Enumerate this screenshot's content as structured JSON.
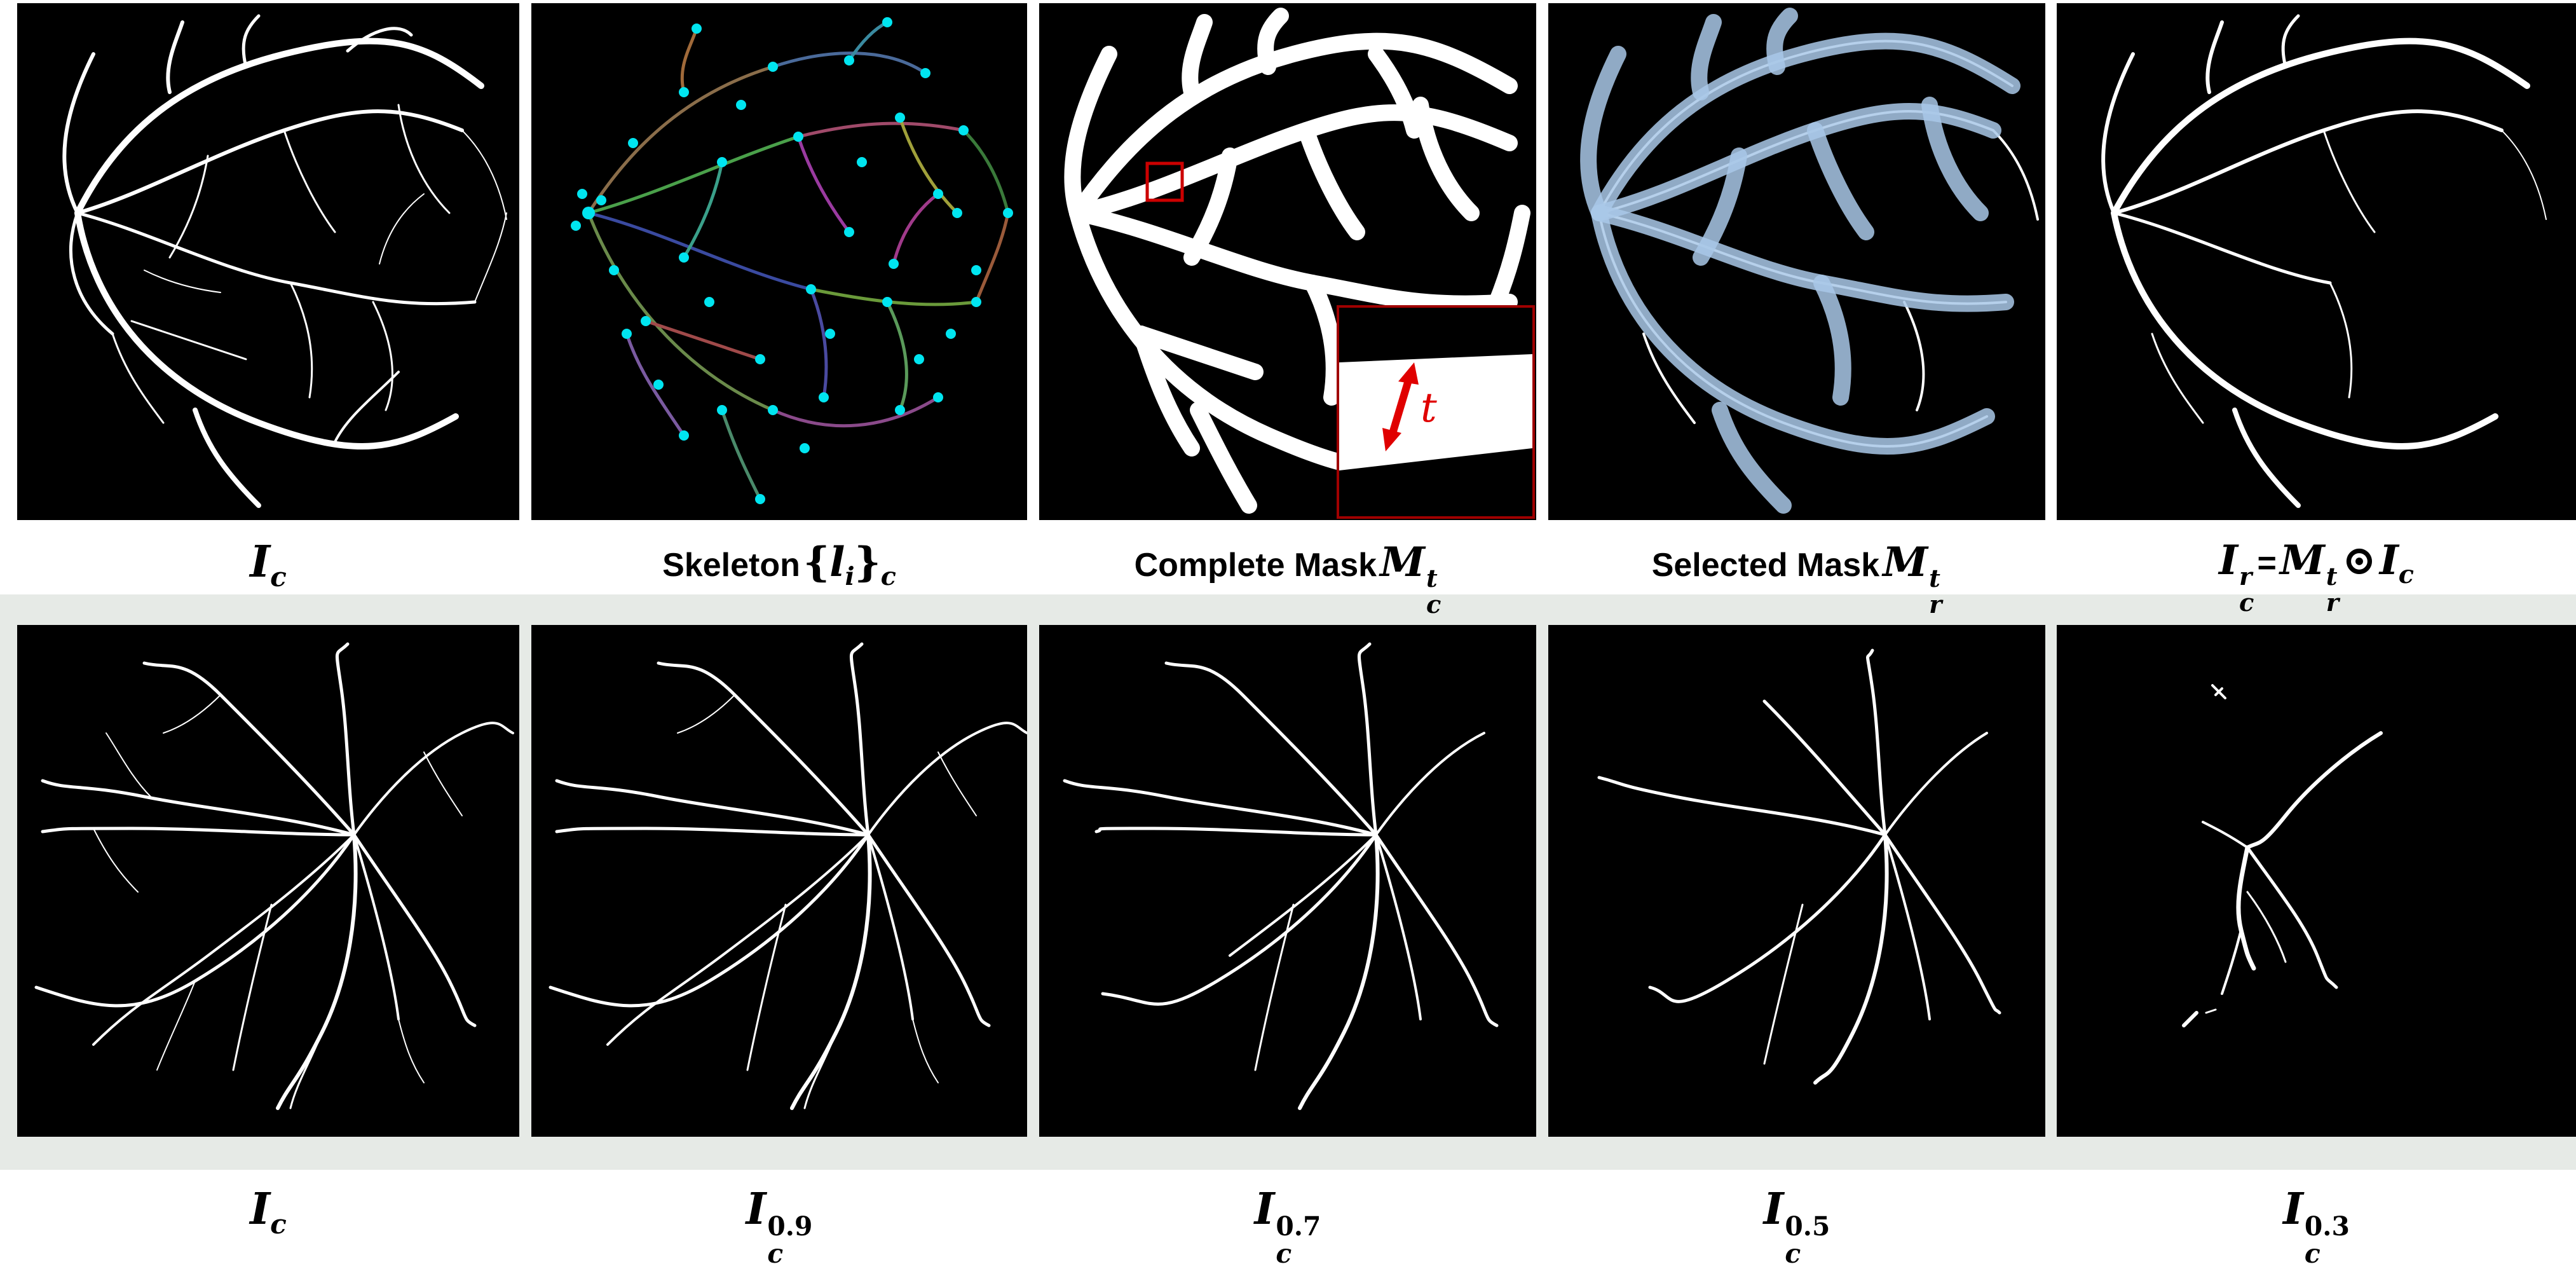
{
  "figure": {
    "row1": {
      "panels": [
        {
          "caption_var": "I",
          "caption_sub": "c"
        },
        {
          "caption_word": "Skeleton",
          "caption_set_open": "{",
          "caption_var": "l",
          "caption_var_sub": "i",
          "caption_set_close": "}",
          "caption_sub": "c"
        },
        {
          "caption_word": "Complete Mask",
          "caption_var": "M",
          "caption_sup": "t",
          "caption_sub": "c",
          "inset_label": "t"
        },
        {
          "caption_word": "Selected Mask",
          "caption_var": "M",
          "caption_sup": "t",
          "caption_sub": "r"
        },
        {
          "caption_lhs_var": "I",
          "caption_lhs_sup": "r",
          "caption_lhs_sub": "c",
          "caption_eq": "=",
          "caption_m_var": "M",
          "caption_m_sup": "t",
          "caption_m_sub": "r",
          "caption_op": "⊙",
          "caption_rhs_var": "I",
          "caption_rhs_sub": "c"
        }
      ]
    },
    "row2": {
      "panels": [
        {
          "caption_var": "I",
          "caption_sub": "c"
        },
        {
          "caption_var": "I",
          "caption_sub": "c",
          "caption_sup": "0.9"
        },
        {
          "caption_var": "I",
          "caption_sub": "c",
          "caption_sup": "0.7"
        },
        {
          "caption_var": "I",
          "caption_sub": "c",
          "caption_sup": "0.5"
        },
        {
          "caption_var": "I",
          "caption_sub": "c",
          "caption_sup": "0.3"
        }
      ]
    }
  },
  "colors": {
    "panel_bg": "#000000",
    "vessel": "#ffffff",
    "skeleton_node": "#00e5f0",
    "selected_overlay": "#a9c8e8",
    "inset_border": "#cc0000",
    "inset_arrow": "#e00000",
    "row2_band": "#e6eae6"
  }
}
